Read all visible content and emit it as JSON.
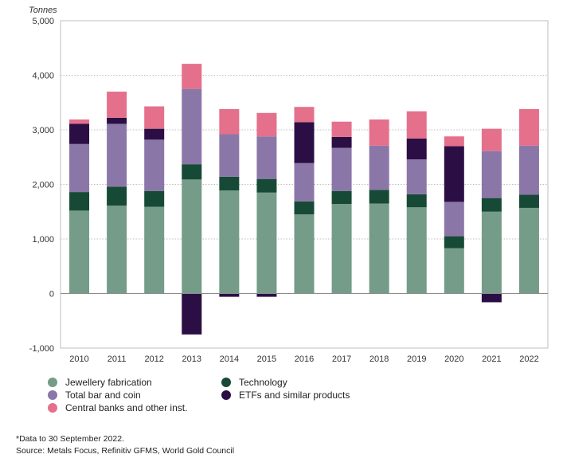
{
  "chart_data": {
    "type": "bar",
    "stacked": true,
    "unit_label": "Tonnes",
    "categories": [
      "2010",
      "2011",
      "2012",
      "2013",
      "2014",
      "2015",
      "2016",
      "2017",
      "2018",
      "2019",
      "2020",
      "2021",
      "2022"
    ],
    "ylim": [
      -1000,
      5000
    ],
    "yticks": [
      -1000,
      0,
      1000,
      2000,
      3000,
      4000,
      5000
    ],
    "ytick_labels": [
      "-1,000",
      "0",
      "1,000",
      "2,000",
      "3,000",
      "4,000",
      "5,000"
    ],
    "grid": "horizontal dotted",
    "series": [
      {
        "name": "Jewellery fabrication",
        "color": "#749c88",
        "values": [
          1520,
          1610,
          1590,
          2090,
          1890,
          1850,
          1450,
          1640,
          1650,
          1580,
          830,
          1500,
          1570
        ]
      },
      {
        "name": "Technology",
        "color": "#174a36",
        "values": [
          340,
          350,
          290,
          280,
          250,
          250,
          240,
          240,
          250,
          240,
          220,
          250,
          240
        ]
      },
      {
        "name": "Total bar and coin",
        "color": "#8a77a8",
        "values": [
          880,
          1150,
          940,
          1380,
          780,
          780,
          700,
          790,
          810,
          640,
          630,
          860,
          900
        ]
      },
      {
        "name": "ETFs and similar products",
        "color": "#2b0f44",
        "values": [
          370,
          110,
          200,
          -750,
          -60,
          -60,
          750,
          200,
          0,
          380,
          1020,
          -160,
          0
        ]
      },
      {
        "name": "Central banks and other inst.",
        "color": "#e4708c",
        "values": [
          80,
          480,
          410,
          460,
          460,
          430,
          280,
          280,
          480,
          500,
          180,
          410,
          670
        ]
      }
    ]
  },
  "legend": {
    "items": [
      {
        "label": "Jewellery fabrication",
        "color": "#749c88"
      },
      {
        "label": "Technology",
        "color": "#174a36"
      },
      {
        "label": "Total bar and coin",
        "color": "#8a77a8"
      },
      {
        "label": "ETFs and similar products",
        "color": "#2b0f44"
      },
      {
        "label": "Central banks and other inst.",
        "color": "#e4708c"
      }
    ]
  },
  "footnote": "*Data to 30 September 2022.",
  "source": "Source: Metals Focus, Refinitiv GFMS, World Gold Council"
}
